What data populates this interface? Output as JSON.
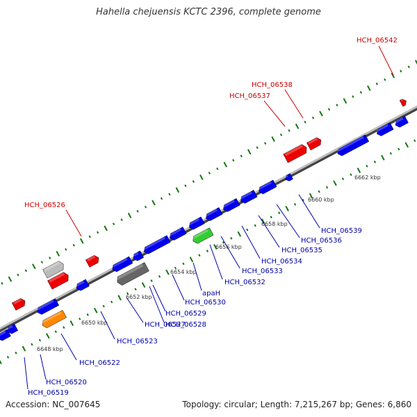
{
  "title": "Hahella chejuensis KCTC 2396, complete genome",
  "footer": {
    "accession": "Accession: NC_007645",
    "summary": "Topology: circular; Length: 7,215,267 bp; Genes: 6,860"
  },
  "colors": {
    "forward_label": "#cc0000",
    "reverse_label": "#0000aa",
    "blue_gene": "#0000ee",
    "red_gene": "#ee0000",
    "green_gene": "#33cc33",
    "orange_gene": "#ff8800",
    "grey_gene": "#bbbbbb",
    "dark_gene": "#666666",
    "tick": "#117711"
  },
  "kbp_labels": [
    "6648 kbp",
    "6650 kbp",
    "6652 kbp",
    "6654 kbp",
    "6656 kbp",
    "6658 kbp",
    "6660 kbp",
    "6662 kbp"
  ],
  "forward_labels": [
    "HCH_06526",
    "HCH_06537",
    "HCH_06538",
    "HCH_06542"
  ],
  "reverse_labels": [
    "HCH_06519",
    "HCH_06520",
    "HCH_06522",
    "HCH_06523",
    "HCH_06527",
    "HCH_06528",
    "HCH_06529",
    "HCH_06530",
    "apaH",
    "HCH_06532",
    "HCH_06533",
    "HCH_06534",
    "HCH_06535",
    "HCH_06536",
    "HCH_06539"
  ]
}
